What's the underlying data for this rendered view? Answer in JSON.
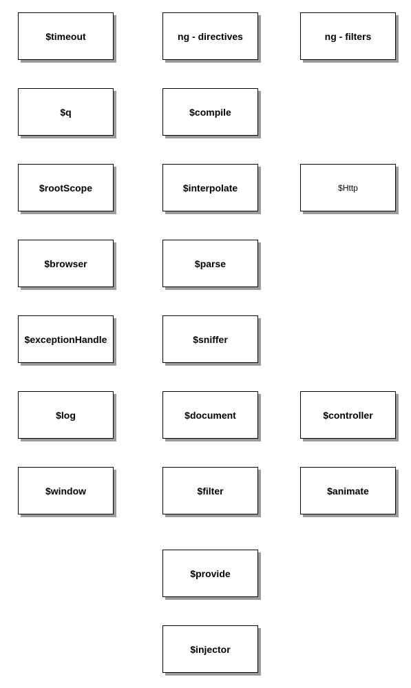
{
  "nodes": {
    "timeout": "$timeout",
    "ng_directives": "ng - directives",
    "ng_filters": "ng - filters",
    "q": "$q",
    "compile": "$compile",
    "rootScope": "$rootScope",
    "interpolate": "$interpolate",
    "http": "$Http",
    "browser": "$browser",
    "parse": "$parse",
    "exceptionHandle": "$exceptionHandle",
    "sniffer": "$sniffer",
    "log": "$log",
    "document": "$document",
    "controller": "$controller",
    "window": "$window",
    "filter": "$filter",
    "animate": "$animate",
    "provide": "$provide",
    "injector": "$injector"
  }
}
